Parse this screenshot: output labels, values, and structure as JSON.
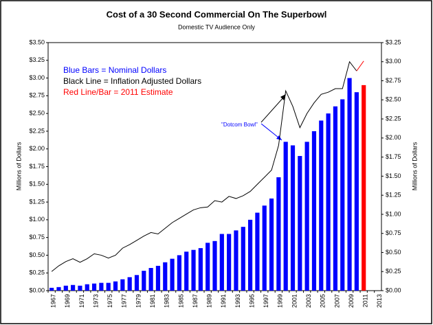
{
  "chart_data": {
    "type": "bar",
    "title": "Cost of a 30 Second Commercial On The Superbowl",
    "subtitle": "Domestic TV Audience Only",
    "ylabel": "Millions of Dollars",
    "y2label": "Millions of Dollars",
    "annotations": [
      "Blue Bars = Nominal Dollars",
      "Black Line = Inflation Adjusted Dollars",
      "Red Line/Bar = 2011 Estimate",
      "\"Dotcom Bowl\""
    ],
    "categories": [
      "1967",
      null,
      "1969",
      null,
      "1971",
      null,
      "1973",
      null,
      "1975",
      null,
      "1977",
      null,
      "1979",
      null,
      "1981",
      null,
      "1983",
      null,
      "1985",
      null,
      "1987",
      null,
      "1989",
      null,
      "1991",
      null,
      "1993",
      null,
      "1995",
      null,
      "1997",
      null,
      "1999",
      null,
      "2001",
      null,
      "2003",
      null,
      "2005",
      null,
      "2007",
      null,
      "2009",
      null,
      "2011",
      null,
      "2013"
    ],
    "series": [
      {
        "color": "#0000ff",
        "values": [
          0.04,
          0.05,
          0.07,
          0.08,
          0.07,
          0.09,
          0.1,
          0.11,
          0.11,
          0.13,
          0.16,
          0.19,
          0.22,
          0.28,
          0.32,
          0.35,
          0.4,
          0.45,
          0.5,
          0.55,
          0.575,
          0.6,
          0.675,
          0.7,
          0.8,
          0.8,
          0.85,
          0.9,
          1.0,
          1.1,
          1.2,
          1.3,
          1.6,
          2.1,
          2.05,
          1.9,
          2.1,
          2.25,
          2.4,
          2.5,
          2.6,
          2.7,
          3.0,
          2.8,
          null,
          null,
          null
        ]
      },
      {
        "color": "#ff0000",
        "values": [
          null,
          null,
          null,
          null,
          null,
          null,
          null,
          null,
          null,
          null,
          null,
          null,
          null,
          null,
          null,
          null,
          null,
          null,
          null,
          null,
          null,
          null,
          null,
          null,
          null,
          null,
          null,
          null,
          null,
          null,
          null,
          null,
          null,
          null,
          null,
          null,
          null,
          null,
          null,
          null,
          null,
          null,
          null,
          null,
          2.9,
          null,
          null
        ]
      },
      {
        "type": "line",
        "color": "#000000",
        "values": [
          0.27,
          0.35,
          0.41,
          0.45,
          0.4,
          0.45,
          0.52,
          0.5,
          0.46,
          0.5,
          0.6,
          0.65,
          0.71,
          0.77,
          0.82,
          0.8,
          0.88,
          0.96,
          1.02,
          1.08,
          1.14,
          1.17,
          1.18,
          1.27,
          1.25,
          1.33,
          1.3,
          1.34,
          1.4,
          1.5,
          1.6,
          1.7,
          2.05,
          2.82,
          2.6,
          2.3,
          2.5,
          2.65,
          2.77,
          2.8,
          2.85,
          2.85,
          3.23,
          3.1,
          null,
          null,
          null
        ]
      },
      {
        "type": "line",
        "color": "#ff0000",
        "values": [
          null,
          null,
          null,
          null,
          null,
          null,
          null,
          null,
          null,
          null,
          null,
          null,
          null,
          null,
          null,
          null,
          null,
          null,
          null,
          null,
          null,
          null,
          null,
          null,
          null,
          null,
          null,
          null,
          null,
          null,
          null,
          null,
          null,
          null,
          null,
          null,
          null,
          null,
          null,
          null,
          null,
          null,
          null,
          3.1,
          3.24,
          null,
          null
        ]
      }
    ],
    "ylim": [
      0,
      3.5
    ],
    "yticks": [
      {
        "value": 0,
        "label": "$0.00"
      },
      {
        "value": 0.25,
        "label": "$0.25"
      },
      {
        "value": 0.5,
        "label": "$0.50"
      },
      {
        "value": 0.75,
        "label": "$0.75"
      },
      {
        "value": 1,
        "label": "$1.00"
      },
      {
        "value": 1.25,
        "label": "$1.25"
      },
      {
        "value": 1.5,
        "label": "$1.50"
      },
      {
        "value": 1.75,
        "label": "$1.75"
      },
      {
        "value": 2,
        "label": "$2.00"
      },
      {
        "value": 2.25,
        "label": "$2.25"
      },
      {
        "value": 2.5,
        "label": "$2.50"
      },
      {
        "value": 2.75,
        "label": "$2.75"
      },
      {
        "value": 3,
        "label": "$3.00"
      },
      {
        "value": 3.25,
        "label": "$3.25"
      },
      {
        "value": 3.5,
        "label": "$3.50"
      }
    ],
    "y2lim": [
      0,
      3.25
    ],
    "y2ticks": [
      {
        "value": 0,
        "label": "$0.00"
      },
      {
        "value": 0.25,
        "label": "$0.25"
      },
      {
        "value": 0.5,
        "label": "$0.50"
      },
      {
        "value": 0.75,
        "label": "$0.75"
      },
      {
        "value": 1,
        "label": "$1.00"
      },
      {
        "value": 1.25,
        "label": "$1.25"
      },
      {
        "value": 1.5,
        "label": "$1.50"
      },
      {
        "value": 1.75,
        "label": "$1.75"
      },
      {
        "value": 2,
        "label": "$2.00"
      },
      {
        "value": 2.25,
        "label": "$2.25"
      },
      {
        "value": 2.5,
        "label": "$2.50"
      },
      {
        "value": 2.75,
        "label": "$2.75"
      },
      {
        "value": 3,
        "label": "$3.00"
      },
      {
        "value": 3.25,
        "label": "$3.25"
      }
    ]
  }
}
